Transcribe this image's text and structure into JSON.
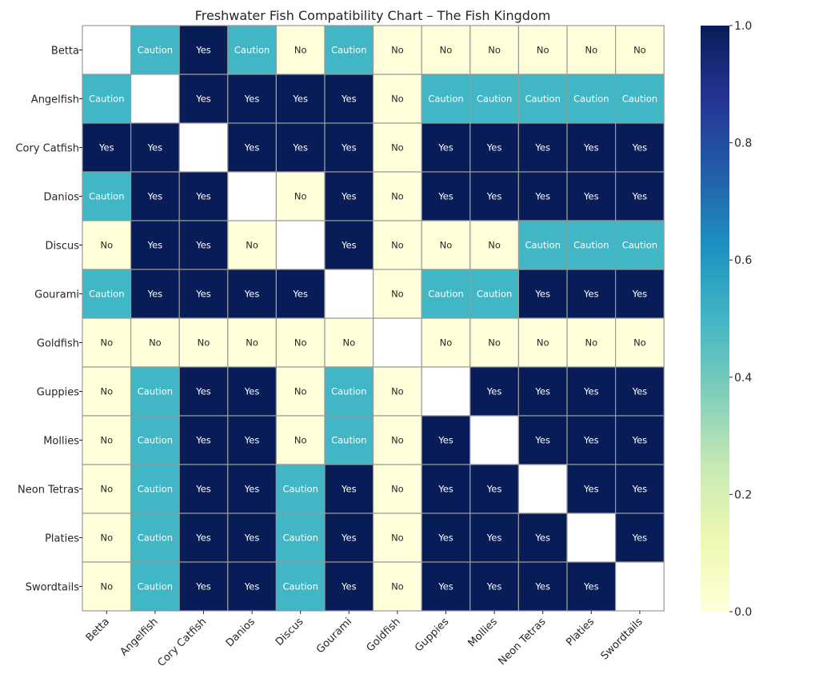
{
  "chart_data": {
    "type": "heatmap",
    "title": "Freshwater Fish Compatibility Chart – The Fish Kingdom",
    "xlabel": "",
    "ylabel": "",
    "rows": [
      "Betta",
      "Angelfish",
      "Cory Catfish",
      "Danios",
      "Discus",
      "Gourami",
      "Goldfish",
      "Guppies",
      "Mollies",
      "Neon Tetras",
      "Platies",
      "Swordtails"
    ],
    "columns": [
      "Betta",
      "Angelfish",
      "Cory Catfish",
      "Danios",
      "Discus",
      "Gourami",
      "Goldfish",
      "Guppies",
      "Mollies",
      "Neon Tetras",
      "Platies",
      "Swordtails"
    ],
    "value_map": {
      "Yes": 1.0,
      "Caution": 0.5,
      "No": 0.0
    },
    "labels": [
      [
        "",
        "Caution",
        "Yes",
        "Caution",
        "No",
        "Caution",
        "No",
        "No",
        "No",
        "No",
        "No",
        "No"
      ],
      [
        "Caution",
        "",
        "Yes",
        "Yes",
        "Yes",
        "Yes",
        "No",
        "Caution",
        "Caution",
        "Caution",
        "Caution",
        "Caution"
      ],
      [
        "Yes",
        "Yes",
        "",
        "Yes",
        "Yes",
        "Yes",
        "No",
        "Yes",
        "Yes",
        "Yes",
        "Yes",
        "Yes"
      ],
      [
        "Caution",
        "Yes",
        "Yes",
        "",
        "No",
        "Yes",
        "No",
        "Yes",
        "Yes",
        "Yes",
        "Yes",
        "Yes"
      ],
      [
        "No",
        "Yes",
        "Yes",
        "No",
        "",
        "Yes",
        "No",
        "No",
        "No",
        "Caution",
        "Caution",
        "Caution"
      ],
      [
        "Caution",
        "Yes",
        "Yes",
        "Yes",
        "Yes",
        "",
        "No",
        "Caution",
        "Caution",
        "Yes",
        "Yes",
        "Yes"
      ],
      [
        "No",
        "No",
        "No",
        "No",
        "No",
        "No",
        "",
        "No",
        "No",
        "No",
        "No",
        "No"
      ],
      [
        "No",
        "Caution",
        "Yes",
        "Yes",
        "No",
        "Caution",
        "No",
        "",
        "Yes",
        "Yes",
        "Yes",
        "Yes"
      ],
      [
        "No",
        "Caution",
        "Yes",
        "Yes",
        "No",
        "Caution",
        "No",
        "Yes",
        "",
        "Yes",
        "Yes",
        "Yes"
      ],
      [
        "No",
        "Caution",
        "Yes",
        "Yes",
        "Caution",
        "Yes",
        "No",
        "Yes",
        "Yes",
        "",
        "Yes",
        "Yes"
      ],
      [
        "No",
        "Caution",
        "Yes",
        "Yes",
        "Caution",
        "Yes",
        "No",
        "Yes",
        "Yes",
        "Yes",
        "",
        "Yes"
      ],
      [
        "No",
        "Caution",
        "Yes",
        "Yes",
        "Caution",
        "Yes",
        "No",
        "Yes",
        "Yes",
        "Yes",
        "Yes",
        ""
      ]
    ],
    "colorbar": {
      "range": [
        0.0,
        1.0
      ],
      "ticks": [
        0.0,
        0.2,
        0.4,
        0.6,
        0.8,
        1.0
      ],
      "tick_labels": [
        "0.0",
        "0.2",
        "0.4",
        "0.6",
        "0.8",
        "1.0"
      ],
      "colormap": "YlGnBu",
      "stops": [
        "#ffffd9",
        "#edf8b1",
        "#c7e9b4",
        "#7fcdbb",
        "#41b6c4",
        "#1d91c0",
        "#225ea8",
        "#253494",
        "#081d58"
      ]
    },
    "colors": {
      "Yes": "#081d58",
      "Caution": "#41b6c4",
      "No": "#ffffd9",
      "diagonal": "#ffffff",
      "grid": "#999999",
      "text_dark_bg": "#ffffff",
      "text_light_bg": "#262626"
    },
    "grid": true,
    "legend": "colorbar-right"
  }
}
